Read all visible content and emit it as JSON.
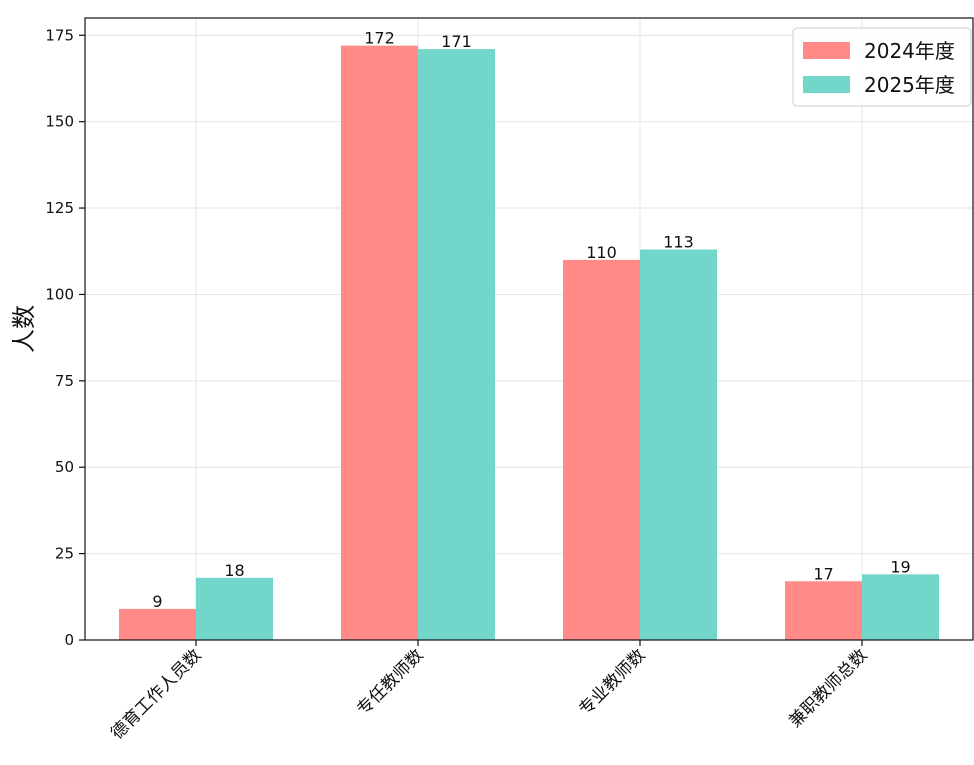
{
  "chart_data": {
    "type": "bar",
    "categories": [
      "德育工作人员数",
      "专任教师数",
      "专业教师数",
      "兼职教师总数"
    ],
    "series": [
      {
        "name": "2024年度",
        "values": [
          9,
          172,
          110,
          17
        ],
        "color": "#FF8A87"
      },
      {
        "name": "2025年度",
        "values": [
          18,
          171,
          113,
          19
        ],
        "color": "#72D6CB"
      }
    ],
    "ylabel": "人数",
    "ylim": [
      0,
      180
    ],
    "yticks": [
      0,
      25,
      50,
      75,
      100,
      125,
      150,
      175
    ],
    "grid": true,
    "legend_position": "top-right"
  }
}
